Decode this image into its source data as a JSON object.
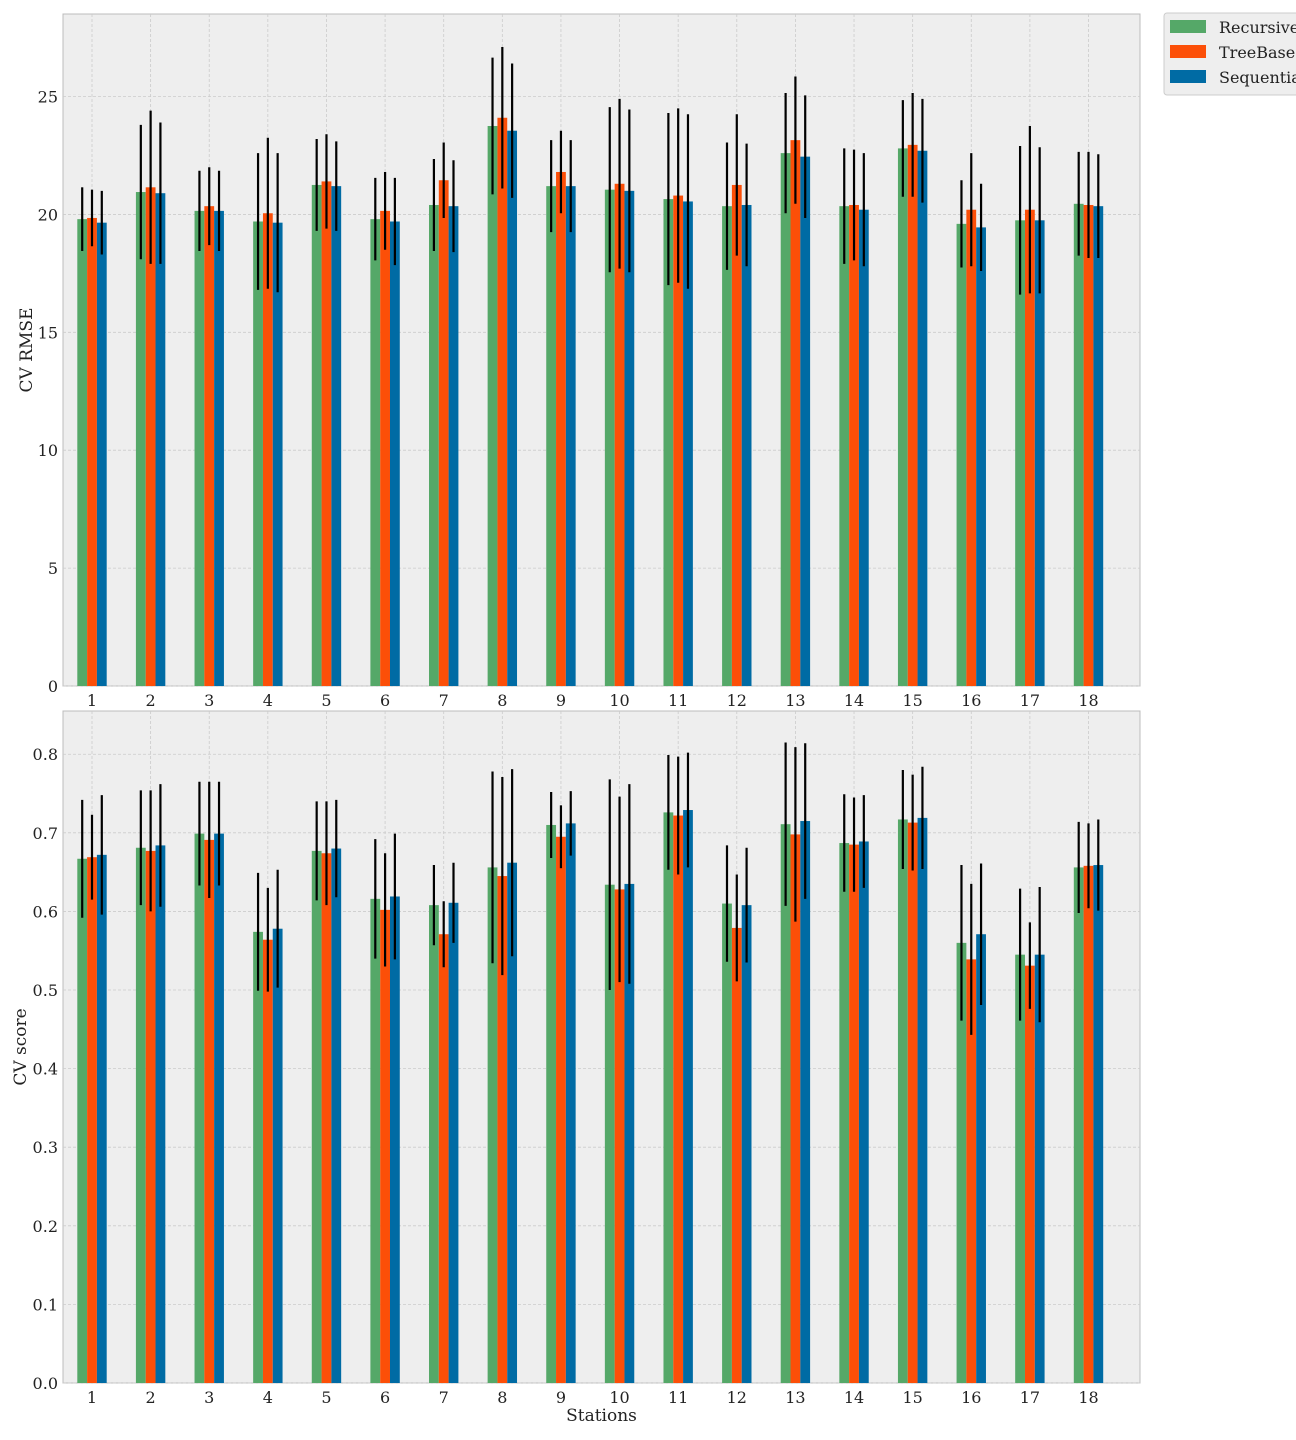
{
  "colors": {
    "recursive": "#55a868",
    "treebased": "#fc4f08",
    "sequential": "#006ba4",
    "panel_bg": "#eeeeee",
    "grid": "#cbcbcb",
    "error_bar": "#000000"
  },
  "legend": {
    "placement": "outside-top-right",
    "items": [
      "Recursive",
      "TreeBased",
      "Sequential"
    ]
  },
  "chart_data": [
    {
      "type": "bar",
      "ylabel": "CV RMSE",
      "xlabel": "",
      "ylim": [
        0,
        28.5
      ],
      "yticks": [
        0,
        5,
        10,
        15,
        20,
        25
      ],
      "ytick_labels": [
        "0",
        "5",
        "10",
        "15",
        "20",
        "25"
      ],
      "grid": true,
      "categories": [
        "1",
        "2",
        "3",
        "4",
        "5",
        "6",
        "7",
        "8",
        "9",
        "10",
        "11",
        "12",
        "13",
        "14",
        "15",
        "16",
        "17",
        "18"
      ],
      "series": [
        {
          "name": "Recursive",
          "values": [
            19.8,
            20.95,
            20.15,
            19.7,
            21.25,
            19.8,
            20.4,
            23.75,
            21.2,
            21.05,
            20.65,
            20.35,
            22.6,
            20.35,
            22.8,
            19.6,
            19.75,
            20.45
          ],
          "errors": [
            1.35,
            2.85,
            1.7,
            2.9,
            1.95,
            1.75,
            1.95,
            2.9,
            1.95,
            3.5,
            3.65,
            2.7,
            2.55,
            2.45,
            2.05,
            1.85,
            3.15,
            2.2
          ]
        },
        {
          "name": "TreeBased",
          "values": [
            19.85,
            21.15,
            20.35,
            20.05,
            21.4,
            20.15,
            21.45,
            24.1,
            21.8,
            21.3,
            20.8,
            21.25,
            23.15,
            20.4,
            22.95,
            20.2,
            20.2,
            20.4
          ],
          "errors": [
            1.2,
            3.25,
            1.65,
            3.2,
            2.0,
            1.65,
            1.6,
            3.0,
            1.75,
            3.6,
            3.7,
            3.0,
            2.7,
            2.35,
            2.2,
            2.4,
            3.55,
            2.25
          ]
        },
        {
          "name": "Sequential",
          "values": [
            19.65,
            20.9,
            20.15,
            19.65,
            21.2,
            19.7,
            20.35,
            23.55,
            21.2,
            21.0,
            20.55,
            20.4,
            22.45,
            20.2,
            22.7,
            19.45,
            19.75,
            20.35
          ],
          "errors": [
            1.35,
            3.0,
            1.7,
            2.95,
            1.9,
            1.85,
            1.95,
            2.85,
            1.95,
            3.45,
            3.7,
            2.6,
            2.6,
            2.4,
            2.2,
            1.85,
            3.1,
            2.2
          ]
        }
      ]
    },
    {
      "type": "bar",
      "ylabel": "CV score",
      "xlabel": "Stations",
      "ylim": [
        0,
        0.855
      ],
      "yticks": [
        0.0,
        0.1,
        0.2,
        0.3,
        0.4,
        0.5,
        0.6,
        0.7,
        0.8
      ],
      "ytick_labels": [
        "0.0",
        "0.1",
        "0.2",
        "0.3",
        "0.4",
        "0.5",
        "0.6",
        "0.7",
        "0.8"
      ],
      "grid": true,
      "categories": [
        "1",
        "2",
        "3",
        "4",
        "5",
        "6",
        "7",
        "8",
        "9",
        "10",
        "11",
        "12",
        "13",
        "14",
        "15",
        "16",
        "17",
        "18"
      ],
      "series": [
        {
          "name": "Recursive",
          "values": [
            0.667,
            0.681,
            0.699,
            0.574,
            0.677,
            0.616,
            0.608,
            0.656,
            0.71,
            0.634,
            0.726,
            0.61,
            0.711,
            0.687,
            0.717,
            0.56,
            0.545,
            0.656
          ],
          "errors": [
            0.075,
            0.073,
            0.066,
            0.075,
            0.063,
            0.076,
            0.051,
            0.122,
            0.042,
            0.134,
            0.073,
            0.074,
            0.104,
            0.062,
            0.063,
            0.099,
            0.084,
            0.058
          ]
        },
        {
          "name": "TreeBased",
          "values": [
            0.669,
            0.677,
            0.691,
            0.564,
            0.674,
            0.602,
            0.571,
            0.645,
            0.695,
            0.628,
            0.722,
            0.579,
            0.698,
            0.685,
            0.713,
            0.539,
            0.531,
            0.658
          ],
          "errors": [
            0.054,
            0.077,
            0.074,
            0.066,
            0.066,
            0.072,
            0.042,
            0.126,
            0.04,
            0.118,
            0.075,
            0.068,
            0.111,
            0.06,
            0.061,
            0.096,
            0.055,
            0.054
          ]
        },
        {
          "name": "Sequential",
          "values": [
            0.672,
            0.684,
            0.699,
            0.578,
            0.68,
            0.619,
            0.611,
            0.662,
            0.712,
            0.635,
            0.729,
            0.608,
            0.715,
            0.689,
            0.719,
            0.571,
            0.545,
            0.659
          ],
          "errors": [
            0.076,
            0.078,
            0.066,
            0.075,
            0.062,
            0.08,
            0.051,
            0.119,
            0.041,
            0.127,
            0.073,
            0.073,
            0.099,
            0.059,
            0.065,
            0.09,
            0.086,
            0.058
          ]
        }
      ]
    }
  ]
}
